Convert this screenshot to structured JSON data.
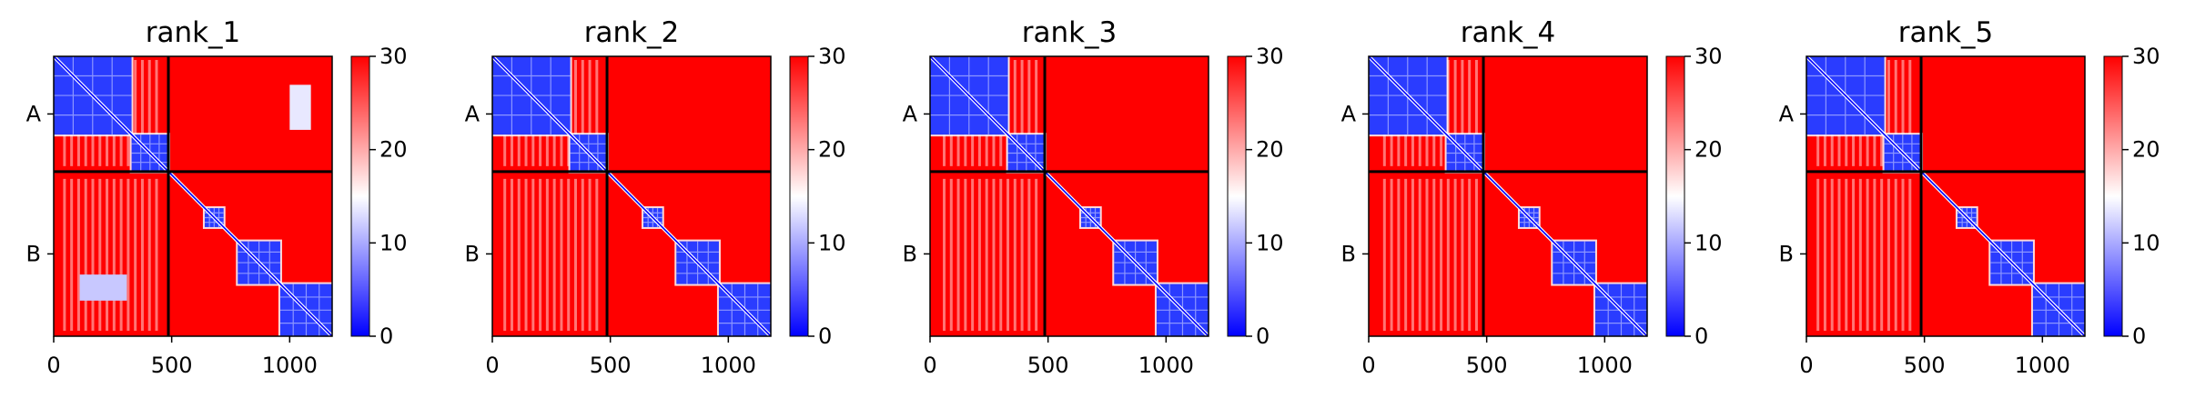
{
  "chart_data": {
    "type": "heatmap",
    "colormap": {
      "name": "bwr",
      "low": "#0000ff",
      "mid": "#ffffff",
      "high": "#ff0000"
    },
    "color_range": [
      0,
      30
    ],
    "colorbar_ticks": [
      "0",
      "10",
      "20",
      "30"
    ],
    "x_ticks": [
      0,
      500,
      1000
    ],
    "x_tick_labels": [
      "0",
      "500",
      "1000"
    ],
    "x_range": [
      0,
      1180
    ],
    "chain_boundary": 486,
    "y_tick_labels": [
      "A",
      "B"
    ],
    "domain_blocks": [
      {
        "start": 0,
        "end": 330
      },
      {
        "start": 330,
        "end": 486
      },
      {
        "start": 640,
        "end": 720
      },
      {
        "start": 780,
        "end": 960
      },
      {
        "start": 960,
        "end": 1180
      }
    ],
    "panels": [
      {
        "title": "rank_1"
      },
      {
        "title": "rank_2"
      },
      {
        "title": "rank_3"
      },
      {
        "title": "rank_4"
      },
      {
        "title": "rank_5"
      }
    ]
  }
}
